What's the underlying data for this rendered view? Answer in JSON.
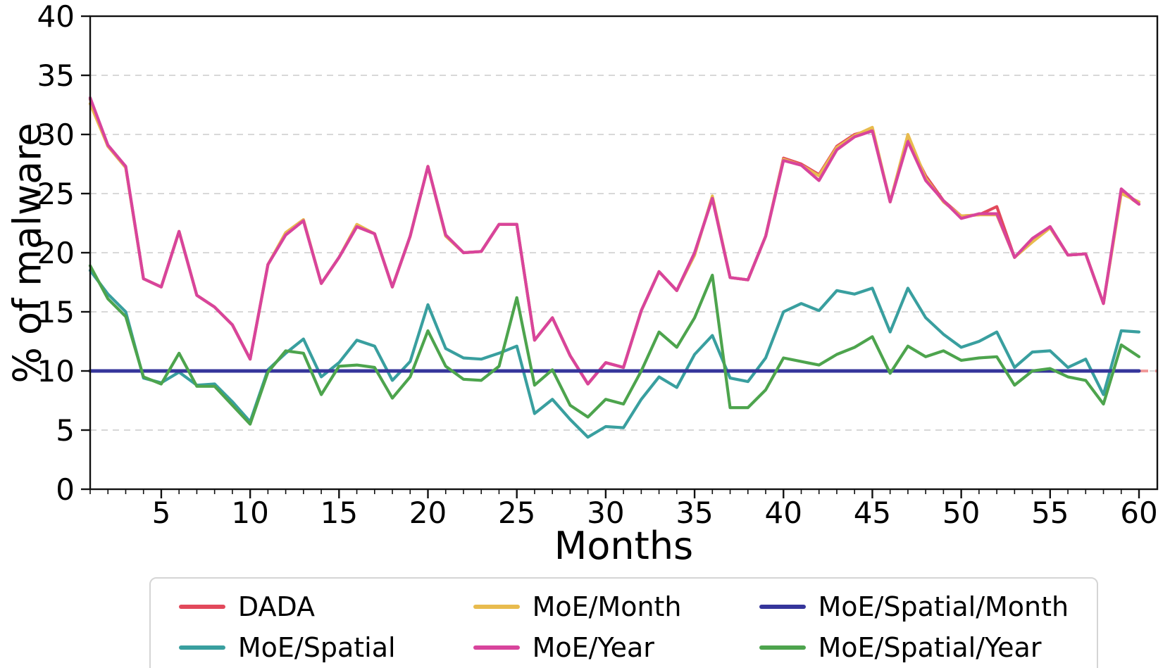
{
  "figure": {
    "background_color": "#ffffff",
    "spine_color": "#111111",
    "grid_color": "#cccccc",
    "tick_label_color": "#000000"
  },
  "chart_data": {
    "type": "line",
    "title": "",
    "xlabel": "Months",
    "ylabel": "% of malware",
    "xlim": [
      1,
      61
    ],
    "ylim": [
      0,
      40
    ],
    "x_ticks": [
      5,
      10,
      15,
      20,
      25,
      30,
      35,
      40,
      45,
      50,
      55,
      60
    ],
    "y_ticks": [
      0,
      5,
      10,
      15,
      20,
      25,
      30,
      35,
      40
    ],
    "x_minor_ticks_every": 1,
    "grid": "horizontal-dashed",
    "x_note": "x value = month index, 1..60",
    "reference_line": {
      "y": 10,
      "color": "#f19999",
      "style": "dashed"
    },
    "legend": {
      "position": "bottom",
      "columns": 3
    },
    "series": [
      {
        "name": "DADA",
        "color": "#e2495b",
        "values": [
          33.0,
          29.0,
          27.2,
          17.8,
          17.1,
          21.8,
          16.4,
          15.4,
          13.9,
          11.0,
          19.0,
          21.6,
          22.7,
          17.4,
          19.6,
          22.2,
          21.6,
          17.1,
          21.4,
          27.3,
          21.5,
          20.0,
          20.1,
          22.4,
          22.4,
          12.6,
          14.5,
          11.3,
          8.9,
          10.7,
          10.3,
          15.1,
          18.4,
          16.8,
          20.0,
          24.6,
          17.9,
          17.7,
          21.4,
          28.0,
          27.5,
          26.6,
          29.0,
          30.0,
          30.4,
          24.3,
          29.5,
          26.5,
          24.4,
          23.1,
          23.2,
          23.9,
          19.6,
          21.1,
          22.2,
          19.8,
          19.9,
          15.7,
          25.2,
          24.1
        ]
      },
      {
        "name": "MoE/Spatial",
        "color": "#399f9f",
        "values": [
          18.5,
          16.5,
          15.0,
          9.4,
          9.0,
          9.9,
          8.8,
          8.9,
          7.4,
          5.7,
          10.1,
          11.5,
          12.7,
          9.5,
          10.7,
          12.6,
          12.1,
          9.2,
          10.8,
          15.6,
          11.9,
          11.1,
          11.0,
          11.5,
          12.1,
          6.4,
          7.6,
          5.9,
          4.4,
          5.3,
          5.2,
          7.6,
          9.5,
          8.6,
          11.4,
          13.0,
          9.4,
          9.1,
          11.1,
          15.0,
          15.7,
          15.1,
          16.8,
          16.5,
          17.0,
          13.3,
          17.0,
          14.5,
          13.1,
          12.0,
          12.5,
          13.3,
          10.3,
          11.6,
          11.7,
          10.3,
          11.0,
          8.0,
          13.4,
          13.3
        ]
      },
      {
        "name": "MoE/Month",
        "color": "#e8bb4e",
        "values": [
          32.6,
          29.0,
          27.2,
          17.8,
          17.1,
          21.8,
          16.4,
          15.4,
          13.9,
          11.0,
          19.0,
          21.7,
          22.8,
          17.4,
          19.6,
          22.4,
          21.6,
          17.1,
          21.4,
          27.3,
          21.4,
          20.0,
          20.1,
          22.4,
          22.4,
          12.6,
          14.5,
          11.3,
          8.9,
          10.7,
          10.3,
          15.1,
          18.4,
          16.8,
          19.8,
          24.8,
          17.9,
          17.7,
          21.4,
          27.9,
          27.4,
          26.5,
          28.9,
          29.9,
          30.6,
          24.3,
          30.0,
          26.3,
          24.3,
          23.1,
          23.2,
          23.2,
          19.6,
          20.9,
          22.1,
          19.8,
          19.9,
          15.7,
          25.0,
          24.3
        ]
      },
      {
        "name": "MoE/Year",
        "color": "#d8449c",
        "values": [
          33.1,
          29.1,
          27.3,
          17.8,
          17.1,
          21.8,
          16.4,
          15.4,
          13.9,
          11.0,
          19.0,
          21.5,
          22.7,
          17.4,
          19.6,
          22.2,
          21.6,
          17.1,
          21.4,
          27.3,
          21.5,
          20.0,
          20.1,
          22.4,
          22.4,
          12.6,
          14.5,
          11.3,
          8.9,
          10.7,
          10.3,
          15.1,
          18.4,
          16.8,
          20.0,
          24.6,
          17.9,
          17.7,
          21.4,
          27.8,
          27.4,
          26.1,
          28.7,
          29.8,
          30.3,
          24.3,
          29.4,
          26.1,
          24.4,
          22.9,
          23.3,
          23.3,
          19.6,
          21.2,
          22.2,
          19.8,
          19.9,
          15.7,
          25.4,
          24.1
        ]
      },
      {
        "name": "MoE/Spatial/Month",
        "color": "#35359b",
        "values": [
          10.0,
          10.0,
          10.0,
          10.0,
          10.0,
          10.0,
          10.0,
          10.0,
          10.0,
          10.0,
          10.0,
          10.0,
          10.0,
          10.0,
          10.0,
          10.0,
          10.0,
          10.0,
          10.0,
          10.0,
          10.0,
          10.0,
          10.0,
          10.0,
          10.0,
          10.0,
          10.0,
          10.0,
          10.0,
          10.0,
          10.0,
          10.0,
          10.0,
          10.0,
          10.0,
          10.0,
          10.0,
          10.0,
          10.0,
          10.0,
          10.0,
          10.0,
          10.0,
          10.0,
          10.0,
          10.0,
          10.0,
          10.0,
          10.0,
          10.0,
          10.0,
          10.0,
          10.0,
          10.0,
          10.0,
          10.0,
          10.0,
          10.0,
          10.0,
          10.0
        ]
      },
      {
        "name": "MoE/Spatial/Year",
        "color": "#4da44d",
        "values": [
          18.9,
          16.1,
          14.6,
          9.5,
          8.9,
          11.5,
          8.7,
          8.7,
          7.1,
          5.5,
          9.9,
          11.7,
          11.5,
          8.0,
          10.4,
          10.5,
          10.3,
          7.7,
          9.5,
          13.4,
          10.4,
          9.3,
          9.2,
          10.4,
          16.2,
          8.8,
          10.1,
          7.1,
          6.1,
          7.6,
          7.2,
          10.0,
          13.3,
          12.0,
          14.5,
          18.1,
          6.9,
          6.9,
          8.4,
          11.1,
          10.8,
          10.5,
          11.4,
          12.0,
          12.9,
          9.8,
          12.1,
          11.2,
          11.7,
          10.9,
          11.1,
          11.2,
          8.8,
          10.0,
          10.2,
          9.5,
          9.2,
          7.2,
          12.2,
          11.2
        ]
      }
    ]
  }
}
